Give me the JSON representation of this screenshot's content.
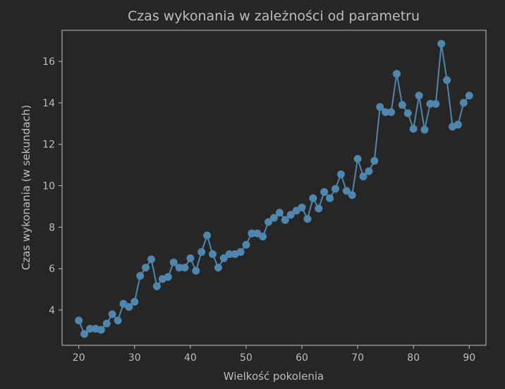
{
  "chart_data": {
    "type": "line",
    "title": "Czas wykonania w zależności od parametru",
    "xlabel": "Wielkość pokolenia",
    "ylabel": "Czas wykonania (w sekundach)",
    "xlim": [
      17,
      93
    ],
    "ylim": [
      2.3,
      17.5
    ],
    "xticks": [
      20,
      30,
      40,
      50,
      60,
      70,
      80,
      90
    ],
    "yticks": [
      4,
      6,
      8,
      10,
      12,
      14,
      16
    ],
    "grid": false,
    "marker": "circle",
    "series": [
      {
        "color": "#4e86ad",
        "x": [
          20,
          21,
          22,
          23,
          24,
          25,
          26,
          27,
          28,
          29,
          30,
          31,
          32,
          33,
          34,
          35,
          36,
          37,
          38,
          39,
          40,
          41,
          42,
          43,
          44,
          45,
          46,
          47,
          48,
          49,
          50,
          51,
          52,
          53,
          54,
          55,
          56,
          57,
          58,
          59,
          60,
          61,
          62,
          63,
          64,
          65,
          66,
          67,
          68,
          69,
          70,
          71,
          72,
          73,
          74,
          75,
          76,
          77,
          78,
          79,
          80,
          81,
          82,
          83,
          84,
          85,
          86,
          87,
          88,
          89,
          90
        ],
        "y": [
          3.5,
          2.85,
          3.1,
          3.1,
          3.05,
          3.35,
          3.8,
          3.5,
          4.3,
          4.15,
          4.4,
          5.65,
          6.05,
          6.45,
          5.15,
          5.5,
          5.6,
          6.3,
          6.05,
          6.05,
          6.5,
          5.9,
          6.8,
          7.6,
          6.7,
          6.05,
          6.5,
          6.7,
          6.7,
          6.8,
          7.15,
          7.7,
          7.7,
          7.55,
          8.25,
          8.45,
          8.7,
          8.35,
          8.6,
          8.8,
          8.95,
          8.4,
          9.4,
          8.9,
          9.7,
          9.4,
          9.85,
          10.55,
          9.75,
          9.55,
          11.3,
          10.45,
          10.7,
          11.2,
          13.8,
          13.55,
          13.55,
          15.4,
          13.9,
          13.5,
          12.75,
          14.35,
          12.7,
          13.95,
          13.95,
          16.85,
          15.1,
          12.85,
          12.95,
          14.0,
          14.35
        ]
      }
    ]
  },
  "colors": {
    "background": "#262626",
    "axes_face": "#262626",
    "spine": "#c0c0c0",
    "text": "#bdbdbd",
    "line": "#4e86ad"
  }
}
